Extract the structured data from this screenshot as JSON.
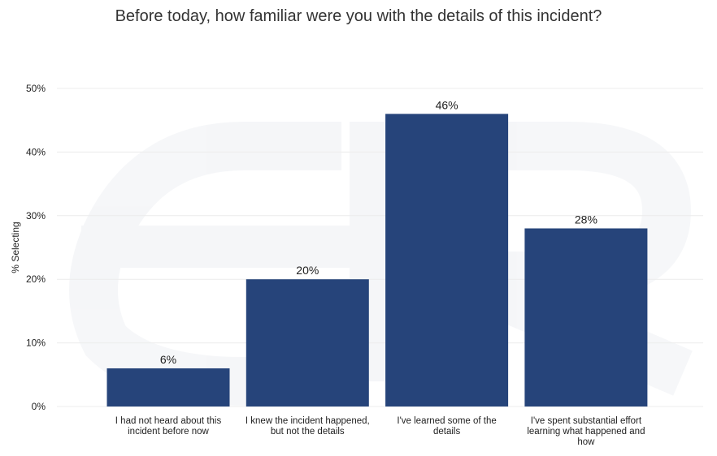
{
  "chart_data": {
    "type": "bar",
    "title": "Before today, how familiar were you with the details of this incident?",
    "ylabel": "% Selecting",
    "xlabel": "",
    "ylim": [
      0,
      50
    ],
    "yticks": [
      0,
      10,
      20,
      30,
      40,
      50
    ],
    "ytick_labels": [
      "0%",
      "10%",
      "20%",
      "30%",
      "40%",
      "50%"
    ],
    "categories": [
      "I had not heard about this incident before now",
      "I knew the incident happened, but not the details",
      "I've learned some of the details",
      "I've spent substantial effort learning what happened and how"
    ],
    "category_lines": [
      [
        "I had not heard about this",
        "incident before now"
      ],
      [
        "I knew the incident happened,",
        "but not the details"
      ],
      [
        "I've learned some of the",
        "details"
      ],
      [
        "I've spent substantial effort",
        "learning what happened and",
        "how"
      ]
    ],
    "values": [
      6,
      20,
      46,
      28
    ],
    "data_labels": [
      "6%",
      "20%",
      "46%",
      "28%"
    ],
    "bar_color": "#26447a",
    "grid": true,
    "grid_color": "#ececec",
    "legend": "none"
  }
}
